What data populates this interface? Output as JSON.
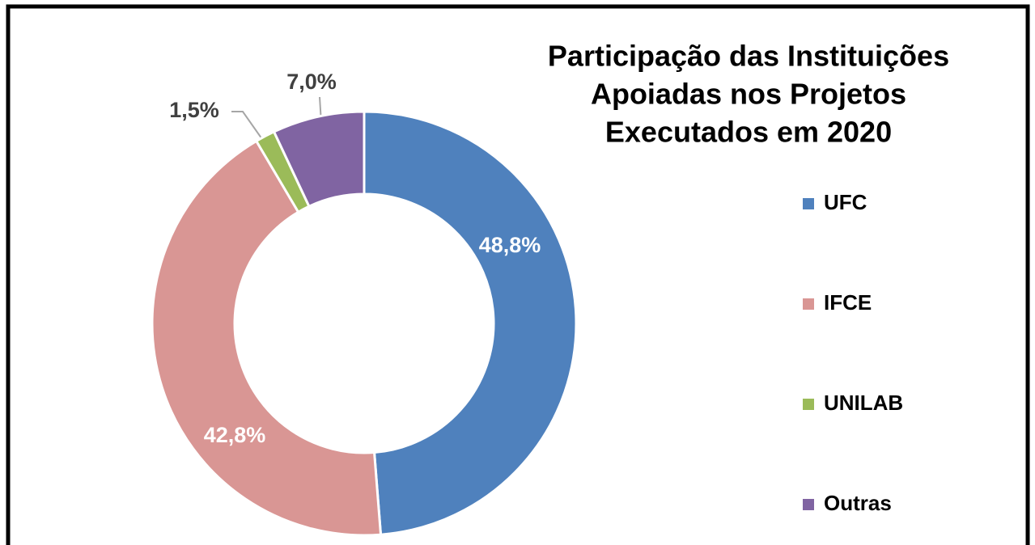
{
  "chart_data": {
    "type": "donut",
    "title": [
      "Participação das Instituições",
      "Apoiadas nos Projetos",
      "Executados em 2020"
    ],
    "categories": [
      "UFC",
      "IFCE",
      "UNILAB",
      "Outras"
    ],
    "values": [
      48.8,
      42.8,
      1.5,
      7.0
    ],
    "value_labels": [
      "48,8%",
      "42,8%",
      "1,5%",
      "7,0%"
    ],
    "colors": [
      "#4f81bd",
      "#d99694",
      "#9bbb59",
      "#8064a2"
    ],
    "legend": "right"
  }
}
